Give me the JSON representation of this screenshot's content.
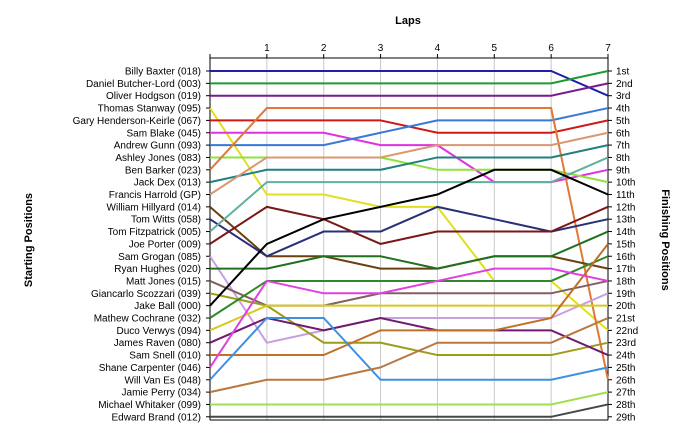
{
  "chart_data": {
    "type": "line",
    "title": "",
    "xlabel": "Laps",
    "ylabel_left": "Starting Positions",
    "ylabel_right": "Finishing Positions",
    "x": [
      0,
      1,
      2,
      3,
      4,
      5,
      6,
      7
    ],
    "x_tick_labels": [
      "1",
      "2",
      "3",
      "4",
      "5",
      "6",
      "7"
    ],
    "finishing_labels": [
      "1st",
      "2nd",
      "3rd",
      "4th",
      "5th",
      "6th",
      "7th",
      "8th",
      "9th",
      "10th",
      "11th",
      "12th",
      "13th",
      "14th",
      "15th",
      "16th",
      "17th",
      "18th",
      "19th",
      "20th",
      "21st",
      "22nd",
      "23rd",
      "24th",
      "25th",
      "26th",
      "27th",
      "28th",
      "29th"
    ],
    "series": [
      {
        "name": "Billy Baxter (018)",
        "color": "#1f1fa8",
        "values": [
          1,
          1,
          1,
          1,
          1,
          1,
          1,
          3
        ]
      },
      {
        "name": "Daniel Butcher-Lord (003)",
        "color": "#1e9a32",
        "values": [
          2,
          2,
          2,
          2,
          2,
          2,
          2,
          1
        ]
      },
      {
        "name": "Oliver Hodgson (019)",
        "color": "#7a1a8c",
        "values": [
          3,
          3,
          3,
          3,
          3,
          3,
          3,
          2
        ]
      },
      {
        "name": "Thomas Stanway (095)",
        "color": "#e0e020",
        "values": [
          4,
          11,
          11,
          12,
          12,
          18,
          18,
          22
        ]
      },
      {
        "name": "Gary Henderson-Keirle (067)",
        "color": "#d01818",
        "values": [
          5,
          5,
          5,
          5,
          6,
          6,
          6,
          5
        ]
      },
      {
        "name": "Sam Blake (045)",
        "color": "#e030e0",
        "values": [
          6,
          6,
          6,
          7,
          7,
          10,
          10,
          9
        ]
      },
      {
        "name": "Andrew Gunn (093)",
        "color": "#3878d8",
        "values": [
          7,
          7,
          7,
          6,
          5,
          5,
          5,
          4
        ]
      },
      {
        "name": "Ashley Jones (083)",
        "color": "#90e040",
        "values": [
          8,
          8,
          8,
          8,
          9,
          9,
          9,
          10
        ]
      },
      {
        "name": "Ben Barker (023)",
        "color": "#e07838",
        "values": [
          9,
          4,
          4,
          4,
          4,
          4,
          4,
          26
        ]
      },
      {
        "name": "Jack Dex (013)",
        "color": "#208080",
        "values": [
          10,
          9,
          9,
          9,
          8,
          8,
          8,
          7
        ]
      },
      {
        "name": "Francis Harrold (GP)",
        "color": "#d89870",
        "values": [
          11,
          8,
          8,
          8,
          7,
          7,
          7,
          6
        ]
      },
      {
        "name": "William Hillyard (014)",
        "color": "#6a4010",
        "values": [
          12,
          16,
          16,
          17,
          17,
          16,
          16,
          17
        ]
      },
      {
        "name": "Tom Witts (058)",
        "color": "#283078",
        "values": [
          13,
          16,
          14,
          14,
          12,
          13,
          14,
          13
        ]
      },
      {
        "name": "Tom Fitzpatrick (005)",
        "color": "#60b0a0",
        "values": [
          14,
          10,
          10,
          10,
          10,
          10,
          10,
          8
        ]
      },
      {
        "name": "Joe Porter (009)",
        "color": "#7a1818",
        "values": [
          15,
          12,
          13,
          15,
          14,
          14,
          14,
          12
        ]
      },
      {
        "name": "Sam Grogan (085)",
        "color": "#c8a0e0",
        "values": [
          16,
          23,
          22,
          21,
          21,
          21,
          21,
          19
        ]
      },
      {
        "name": "Ryan Hughes (020)",
        "color": "#207020",
        "values": [
          17,
          17,
          16,
          16,
          17,
          16,
          16,
          14
        ]
      },
      {
        "name": "Matt Jones (015)",
        "color": "#806060",
        "values": [
          18,
          20,
          20,
          19,
          19,
          19,
          19,
          18
        ]
      },
      {
        "name": "Giancarlo Scozzari (039)",
        "color": "#9c9c18",
        "values": [
          19,
          20,
          23,
          23,
          24,
          24,
          24,
          23
        ]
      },
      {
        "name": "Jake Ball (000)",
        "color": "#000000",
        "values": [
          20,
          15,
          13,
          12,
          11,
          9,
          9,
          11
        ]
      },
      {
        "name": "Mathew Cochrane (032)",
        "color": "#308828",
        "values": [
          21,
          18,
          18,
          18,
          18,
          18,
          18,
          16
        ]
      },
      {
        "name": "Duco Verwys (094)",
        "color": "#d8c820",
        "values": [
          22,
          20,
          20,
          20,
          20,
          20,
          20,
          20
        ]
      },
      {
        "name": "James Raven (080)",
        "color": "#701a70",
        "values": [
          23,
          21,
          22,
          21,
          22,
          22,
          22,
          24
        ]
      },
      {
        "name": "Sam Snell (010)",
        "color": "#c07028",
        "values": [
          24,
          24,
          24,
          22,
          22,
          22,
          21,
          15
        ]
      },
      {
        "name": "Shane Carpenter (046)",
        "color": "#e040e0",
        "values": [
          25,
          18,
          19,
          19,
          18,
          17,
          17,
          18
        ]
      },
      {
        "name": "Will Van Es (048)",
        "color": "#4090e0",
        "values": [
          26,
          21,
          21,
          26,
          26,
          26,
          26,
          25
        ]
      },
      {
        "name": "Jamie Perry (034)",
        "color": "#b87840",
        "values": [
          27,
          26,
          26,
          25,
          23,
          23,
          23,
          21
        ]
      },
      {
        "name": "Michael Whitaker (099)",
        "color": "#a0e050",
        "values": [
          28,
          28,
          28,
          28,
          28,
          28,
          28,
          27
        ]
      },
      {
        "name": "Edward Brand (012)",
        "color": "#404848",
        "values": [
          29,
          29,
          29,
          29,
          29,
          29,
          29,
          28
        ]
      }
    ],
    "x_range": [
      0,
      7
    ],
    "y_range": [
      1,
      29
    ],
    "y_inverted": true,
    "grid": "vertical",
    "legend": "none"
  }
}
